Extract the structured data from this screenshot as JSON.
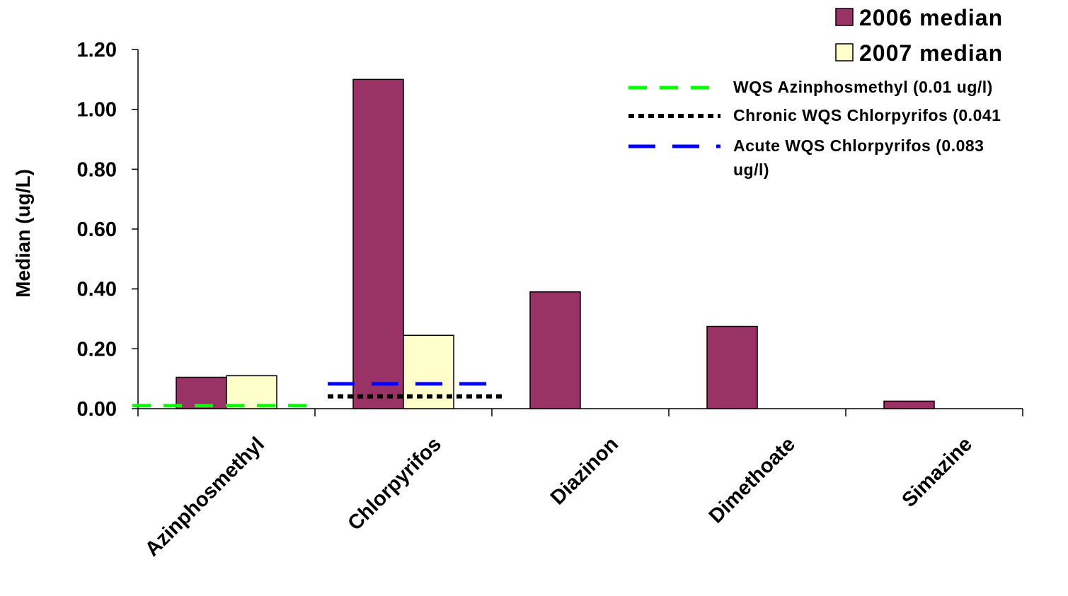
{
  "chart_data": {
    "type": "bar",
    "title": "",
    "xlabel": "",
    "ylabel": "Median (ug/L)",
    "ylim": [
      0,
      1.2
    ],
    "yticks": [
      "0.00",
      "0.20",
      "0.40",
      "0.60",
      "0.80",
      "1.00",
      "1.20"
    ],
    "ytick_values": [
      0,
      0.2,
      0.4,
      0.6,
      0.8,
      1.0,
      1.2
    ],
    "categories": [
      "Azinphosmethyl",
      "Chlorpyrifos",
      "Diazinon",
      "Dimethoate",
      "Simazine"
    ],
    "series": [
      {
        "name": "2006 median",
        "color": "#993366",
        "values": [
          0.105,
          1.1,
          0.39,
          0.275,
          0.025
        ]
      },
      {
        "name": "2007 median",
        "color": "#FFFFCC",
        "values": [
          0.11,
          0.245,
          null,
          null,
          null
        ]
      }
    ],
    "reference_lines": [
      {
        "name": "WQS Azinphosmethyl (0.01 ug/l)",
        "value": 0.01,
        "category": "Azinphosmethyl",
        "color": "#00FF00",
        "style": "dashed"
      },
      {
        "name": "Chronic WQS Chlorpyrifos (0.041",
        "value": 0.041,
        "category": "Chlorpyrifos",
        "color": "#000000",
        "style": "dotted"
      },
      {
        "name_lines": [
          "Acute WQS Chlorpyrifos (0.083",
          "ug/l)"
        ],
        "value": 0.083,
        "category": "Chlorpyrifos",
        "color": "#0000FF",
        "style": "long-dash"
      }
    ],
    "grid": false,
    "legend_position": "top-right"
  }
}
